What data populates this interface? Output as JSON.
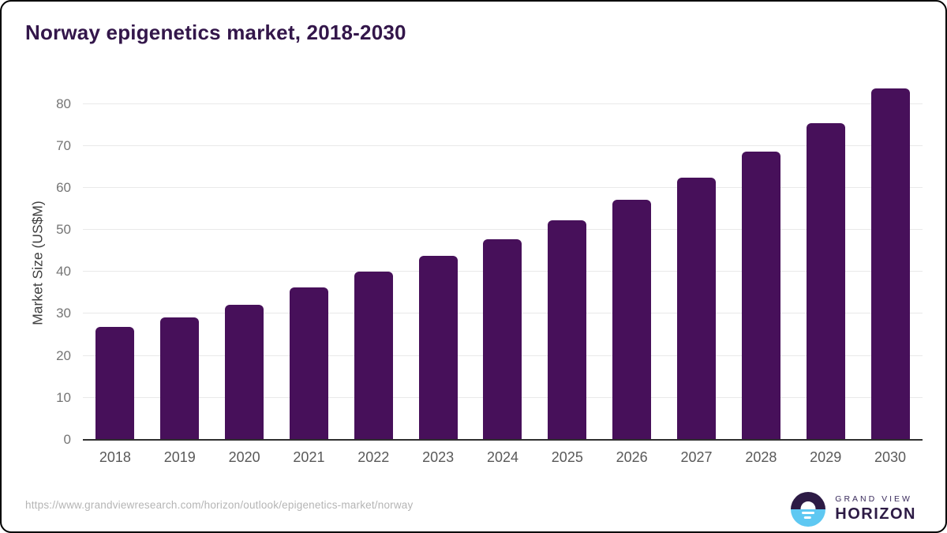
{
  "chart_data": {
    "type": "bar",
    "title": "Norway epigenetics market, 2018-2030",
    "categories": [
      "2018",
      "2019",
      "2020",
      "2021",
      "2022",
      "2023",
      "2024",
      "2025",
      "2026",
      "2027",
      "2028",
      "2029",
      "2030"
    ],
    "values": [
      26.9,
      29.2,
      32.2,
      36.3,
      40.1,
      43.8,
      47.7,
      52.2,
      57.1,
      62.5,
      68.6,
      75.5,
      83.6
    ],
    "xlabel": "",
    "ylabel": "Market Size (US$M)",
    "ylim": [
      0,
      85
    ],
    "yticks": [
      0,
      10,
      20,
      30,
      40,
      50,
      60,
      70,
      80
    ],
    "grid": true,
    "legend_position": "none",
    "bar_color": "#47105a",
    "gridline_color": "#e9e9e9",
    "axis_line_color": "#2f2f2f",
    "tick_label_color": "#757575",
    "title_color": "#33164a"
  },
  "footer": {
    "source_url": "https://www.grandviewresearch.com/horizon/outlook/epigenetics-market/norway",
    "logo": {
      "brand_line1": "GRAND VIEW",
      "brand_line2": "HORIZON",
      "mark_top_color": "#2d1b45",
      "mark_bottom_color": "#5ec8f2"
    }
  }
}
